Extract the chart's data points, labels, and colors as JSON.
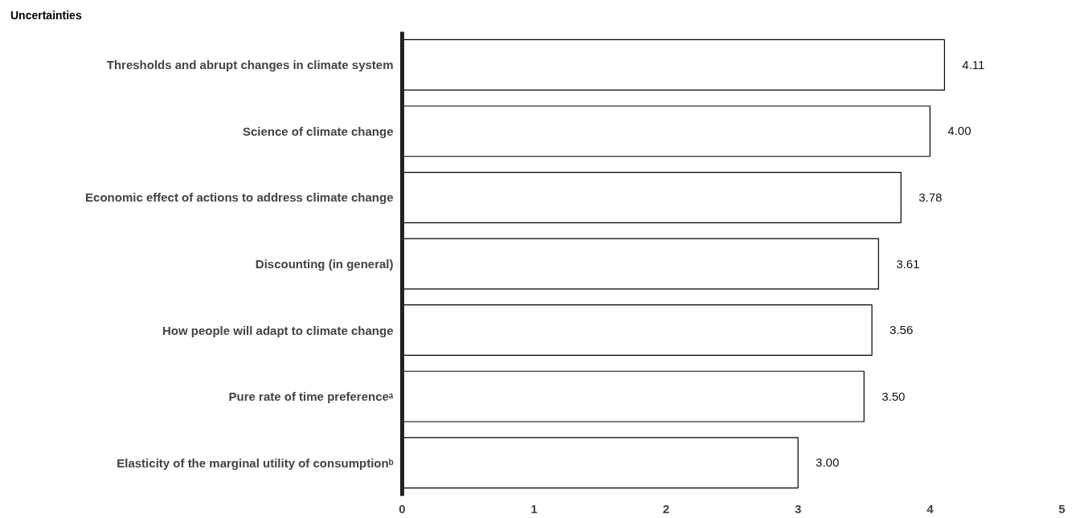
{
  "chart_data": {
    "type": "bar",
    "orientation": "horizontal",
    "ylabel": "Uncertainties",
    "categories": [
      "Thresholds and abrupt changes in climate system",
      "Science of climate change",
      "Economic effect of actions to address climate change",
      "Discounting (in general)",
      "How people will adapt to climate change",
      "Pure rate of time preferenceᵃ",
      "Elasticity of the marginal utility of consumptionᵇ"
    ],
    "values": [
      4.11,
      4.0,
      3.78,
      3.61,
      3.56,
      3.5,
      3.0
    ],
    "value_labels": [
      "4.11",
      "4.00",
      "3.78",
      "3.61",
      "3.56",
      "3.50",
      "3.00"
    ],
    "color": "#ffffff",
    "xlim": [
      0,
      5
    ],
    "xticks": [
      0,
      1,
      2,
      3,
      4,
      5
    ],
    "grid": false
  }
}
